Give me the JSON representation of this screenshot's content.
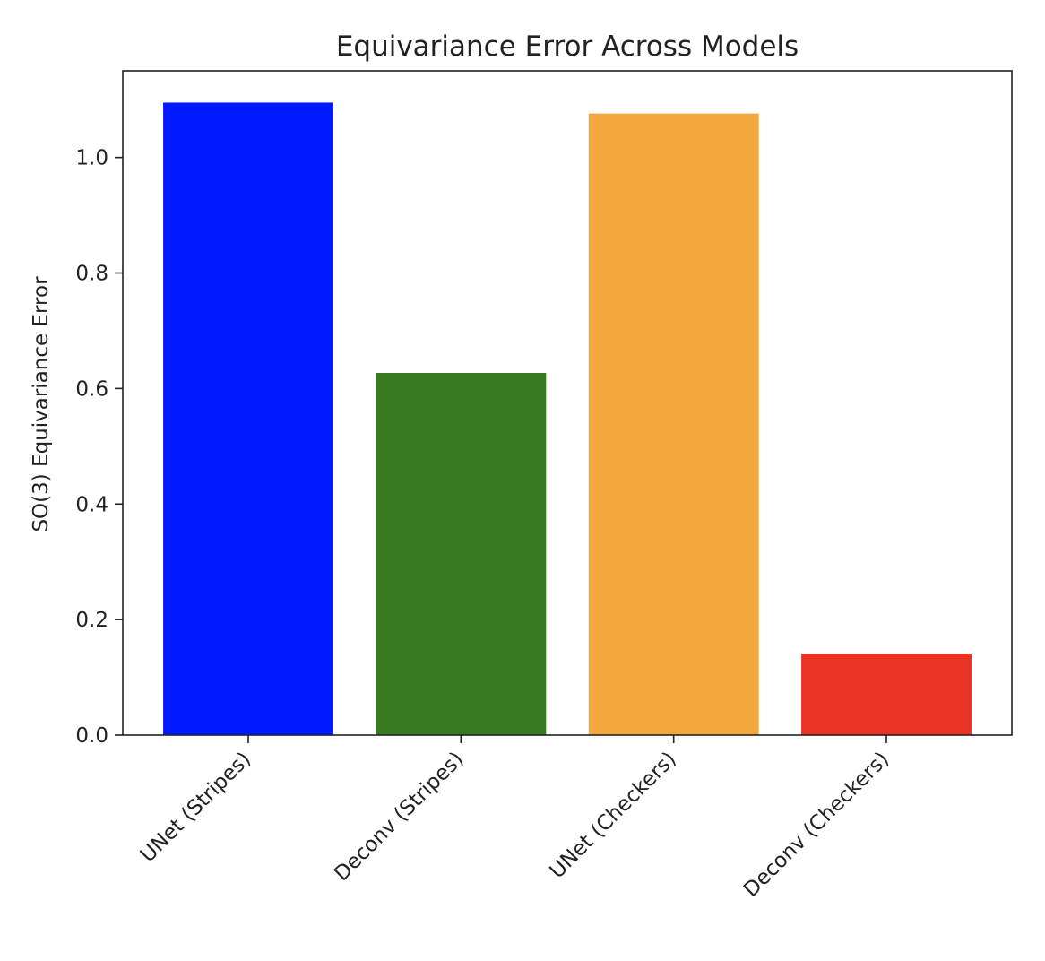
{
  "chart_data": {
    "type": "bar",
    "title": "Equivariance Error Across Models",
    "xlabel": "",
    "ylabel": "SO(3) Equivariance Error",
    "categories": [
      "UNet (Stripes)",
      "Deconv (Stripes)",
      "UNet (Checkers)",
      "Deconv (Checkers)"
    ],
    "values": [
      1.095,
      0.627,
      1.076,
      0.141
    ],
    "colors": [
      "#001aff",
      "#367b20",
      "#f1a73c",
      "#ea3323"
    ],
    "ylim": [
      0,
      1.15
    ],
    "yticks": [
      0.0,
      0.2,
      0.4,
      0.6,
      0.8,
      1.0
    ],
    "ytick_labels": [
      "0.0",
      "0.2",
      "0.4",
      "0.6",
      "0.8",
      "1.0"
    ],
    "xtick_rotation": 45,
    "grid": false,
    "legend": "none"
  }
}
